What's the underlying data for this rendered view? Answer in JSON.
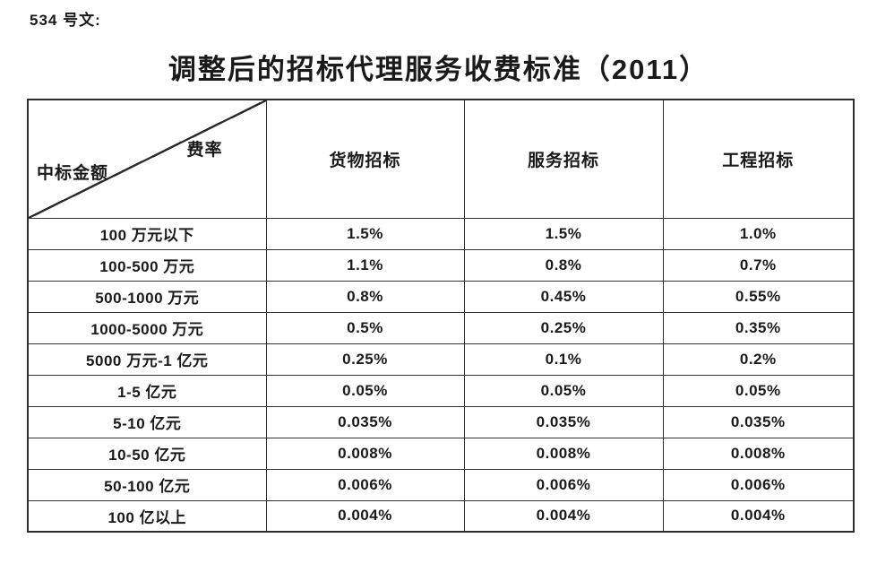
{
  "doc_number": "534 号文:",
  "title": "调整后的招标代理服务收费标准（2011）",
  "table": {
    "corner": {
      "top_right": "费率",
      "bottom_left": "中标金额"
    },
    "columns": [
      "货物招标",
      "服务招标",
      "工程招标"
    ],
    "rows": [
      {
        "label": "100 万元以下",
        "values": [
          "1.5%",
          "1.5%",
          "1.0%"
        ]
      },
      {
        "label": "100-500 万元",
        "values": [
          "1.1%",
          "0.8%",
          "0.7%"
        ]
      },
      {
        "label": "500-1000 万元",
        "values": [
          "0.8%",
          "0.45%",
          "0.55%"
        ]
      },
      {
        "label": "1000-5000 万元",
        "values": [
          "0.5%",
          "0.25%",
          "0.35%"
        ]
      },
      {
        "label": "5000 万元-1 亿元",
        "values": [
          "0.25%",
          "0.1%",
          "0.2%"
        ]
      },
      {
        "label": "1-5 亿元",
        "values": [
          "0.05%",
          "0.05%",
          "0.05%"
        ]
      },
      {
        "label": "5-10 亿元",
        "values": [
          "0.035%",
          "0.035%",
          "0.035%"
        ]
      },
      {
        "label": "10-50 亿元",
        "values": [
          "0.008%",
          "0.008%",
          "0.008%"
        ]
      },
      {
        "label": "50-100 亿元",
        "values": [
          "0.006%",
          "0.006%",
          "0.006%"
        ]
      },
      {
        "label": "100 亿以上",
        "values": [
          "0.004%",
          "0.004%",
          "0.004%"
        ]
      }
    ]
  },
  "colors": {
    "text": "#1a1a1a",
    "border": "#333333",
    "background": "#ffffff"
  }
}
